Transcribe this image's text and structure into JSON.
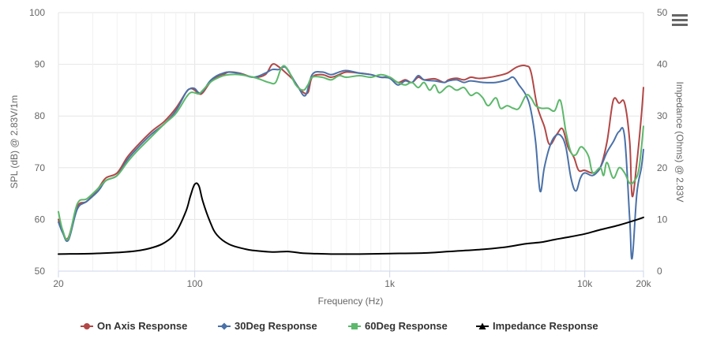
{
  "chart_data": {
    "type": "line",
    "x_scale": "log",
    "grid": true,
    "legend_placement": "bottom-center",
    "xlabel": "Frequency (Hz)",
    "ylabel_left": "SPL (dB) @ 2.83V/1m",
    "ylabel_right": "Impedance (Ohms) @ 2.83V",
    "xlim": [
      20,
      20000
    ],
    "ylim_left": [
      50,
      100
    ],
    "ylim_right": [
      0,
      50
    ],
    "x_ticks": [
      {
        "value": 20,
        "label": "20"
      },
      {
        "value": 100,
        "label": "100"
      },
      {
        "value": 1000,
        "label": "1k"
      },
      {
        "value": 10000,
        "label": "10k"
      },
      {
        "value": 20000,
        "label": "20k"
      }
    ],
    "y_ticks_left": [
      "50",
      "60",
      "70",
      "80",
      "90",
      "100"
    ],
    "y_ticks_right": [
      "0",
      "10",
      "20",
      "30",
      "40",
      "50"
    ],
    "series": [
      {
        "name": "On Axis Response",
        "color": "#b24746",
        "marker": "circle",
        "axis": "left",
        "points": [
          [
            20,
            60.0
          ],
          [
            21,
            57.5
          ],
          [
            22.5,
            56.5
          ],
          [
            25,
            62.5
          ],
          [
            28,
            63.5
          ],
          [
            32,
            66
          ],
          [
            35,
            68
          ],
          [
            40,
            69
          ],
          [
            45,
            72
          ],
          [
            50,
            74
          ],
          [
            60,
            77
          ],
          [
            70,
            79
          ],
          [
            80,
            81.5
          ],
          [
            90,
            84.5
          ],
          [
            95,
            85.3
          ],
          [
            100,
            85
          ],
          [
            105,
            84.3
          ],
          [
            110,
            84.5
          ],
          [
            120,
            86.5
          ],
          [
            130,
            87.5
          ],
          [
            140,
            88
          ],
          [
            150,
            88.5
          ],
          [
            170,
            88.3
          ],
          [
            200,
            87.5
          ],
          [
            230,
            88
          ],
          [
            250,
            90
          ],
          [
            270,
            89.5
          ],
          [
            290,
            88.5
          ],
          [
            320,
            87
          ],
          [
            350,
            85
          ],
          [
            380,
            84.5
          ],
          [
            400,
            87.5
          ],
          [
            450,
            88
          ],
          [
            500,
            87.5
          ],
          [
            550,
            88
          ],
          [
            600,
            88.5
          ],
          [
            700,
            88.3
          ],
          [
            800,
            88
          ],
          [
            900,
            87.5
          ],
          [
            1000,
            87.5
          ],
          [
            1100,
            86.5
          ],
          [
            1200,
            87
          ],
          [
            1300,
            86.5
          ],
          [
            1400,
            87.5
          ],
          [
            1500,
            87
          ],
          [
            1700,
            87.2
          ],
          [
            1900,
            86.5
          ],
          [
            2000,
            87
          ],
          [
            2200,
            87.3
          ],
          [
            2400,
            87
          ],
          [
            2600,
            87.5
          ],
          [
            2800,
            87.3
          ],
          [
            3000,
            87.3
          ],
          [
            3500,
            87.7
          ],
          [
            4000,
            88.3
          ],
          [
            4500,
            89.5
          ],
          [
            5000,
            89.7
          ],
          [
            5300,
            88.5
          ],
          [
            5700,
            82
          ],
          [
            6200,
            78
          ],
          [
            6600,
            74.5
          ],
          [
            7200,
            76.5
          ],
          [
            7700,
            77.5
          ],
          [
            8200,
            74
          ],
          [
            8800,
            72
          ],
          [
            9300,
            69.5
          ],
          [
            10000,
            69.5
          ],
          [
            11000,
            69
          ],
          [
            12000,
            70
          ],
          [
            13000,
            75
          ],
          [
            14000,
            83
          ],
          [
            15000,
            82.5
          ],
          [
            16000,
            82.5
          ],
          [
            17000,
            75
          ],
          [
            17500,
            64.5
          ],
          [
            18500,
            71
          ],
          [
            19500,
            80
          ],
          [
            20000,
            85.5
          ]
        ]
      },
      {
        "name": "30Deg Response",
        "color": "#4a71a8",
        "marker": "diamond",
        "axis": "left",
        "points": [
          [
            20,
            59.5
          ],
          [
            21,
            57.5
          ],
          [
            22.5,
            56
          ],
          [
            25,
            62
          ],
          [
            28,
            63.5
          ],
          [
            32,
            65.5
          ],
          [
            35,
            67.5
          ],
          [
            40,
            68.5
          ],
          [
            45,
            71.5
          ],
          [
            50,
            73.5
          ],
          [
            60,
            76.5
          ],
          [
            70,
            78.5
          ],
          [
            80,
            81
          ],
          [
            90,
            84.5
          ],
          [
            95,
            85.3
          ],
          [
            100,
            85.3
          ],
          [
            105,
            84.5
          ],
          [
            110,
            84.8
          ],
          [
            120,
            86.8
          ],
          [
            130,
            87.8
          ],
          [
            140,
            88.3
          ],
          [
            150,
            88.5
          ],
          [
            170,
            88.2
          ],
          [
            200,
            87.5
          ],
          [
            230,
            88.3
          ],
          [
            250,
            89
          ],
          [
            270,
            89
          ],
          [
            290,
            89.5
          ],
          [
            310,
            88
          ],
          [
            340,
            85.5
          ],
          [
            370,
            84
          ],
          [
            400,
            88
          ],
          [
            450,
            88.5
          ],
          [
            500,
            88
          ],
          [
            550,
            88.5
          ],
          [
            600,
            88.8
          ],
          [
            700,
            88.3
          ],
          [
            800,
            88
          ],
          [
            900,
            87.5
          ],
          [
            1000,
            87.3
          ],
          [
            1100,
            86
          ],
          [
            1200,
            86.8
          ],
          [
            1300,
            86.5
          ],
          [
            1400,
            87.8
          ],
          [
            1500,
            87
          ],
          [
            1700,
            86.8
          ],
          [
            1900,
            86.5
          ],
          [
            2000,
            86.8
          ],
          [
            2200,
            87
          ],
          [
            2400,
            86.5
          ],
          [
            2600,
            86.8
          ],
          [
            3000,
            86.5
          ],
          [
            3500,
            86.5
          ],
          [
            4000,
            87
          ],
          [
            4300,
            87.5
          ],
          [
            4600,
            86
          ],
          [
            5000,
            84
          ],
          [
            5300,
            81
          ],
          [
            5600,
            75
          ],
          [
            5900,
            65.5
          ],
          [
            6200,
            70
          ],
          [
            6600,
            74
          ],
          [
            7000,
            76
          ],
          [
            7500,
            76.3
          ],
          [
            8000,
            74
          ],
          [
            8500,
            68
          ],
          [
            9000,
            65.5
          ],
          [
            9500,
            68
          ],
          [
            10000,
            69
          ],
          [
            11000,
            68.5
          ],
          [
            12000,
            70
          ],
          [
            13000,
            73
          ],
          [
            14000,
            75
          ],
          [
            15000,
            77
          ],
          [
            16000,
            76
          ],
          [
            17000,
            60
          ],
          [
            17500,
            52.5
          ],
          [
            18500,
            65
          ],
          [
            19500,
            70
          ],
          [
            20000,
            73.5
          ]
        ]
      },
      {
        "name": "60Deg Response",
        "color": "#5cb86b",
        "marker": "square",
        "axis": "left",
        "points": [
          [
            20,
            61.5
          ],
          [
            21,
            58
          ],
          [
            22.5,
            56.3
          ],
          [
            25,
            63
          ],
          [
            28,
            64
          ],
          [
            32,
            66
          ],
          [
            35,
            67.5
          ],
          [
            40,
            68.5
          ],
          [
            45,
            71
          ],
          [
            50,
            73
          ],
          [
            60,
            76
          ],
          [
            70,
            78.5
          ],
          [
            80,
            80.5
          ],
          [
            90,
            83.5
          ],
          [
            95,
            84.5
          ],
          [
            100,
            84.5
          ],
          [
            105,
            84.3
          ],
          [
            110,
            85
          ],
          [
            120,
            86.5
          ],
          [
            130,
            87.3
          ],
          [
            140,
            87.8
          ],
          [
            150,
            88
          ],
          [
            170,
            88
          ],
          [
            200,
            87.5
          ],
          [
            220,
            87
          ],
          [
            240,
            86.5
          ],
          [
            260,
            86.5
          ],
          [
            280,
            89.5
          ],
          [
            300,
            89
          ],
          [
            330,
            86
          ],
          [
            360,
            85
          ],
          [
            380,
            86
          ],
          [
            400,
            87.5
          ],
          [
            450,
            87.5
          ],
          [
            500,
            87
          ],
          [
            550,
            87.8
          ],
          [
            600,
            87.5
          ],
          [
            700,
            87.8
          ],
          [
            800,
            87.5
          ],
          [
            900,
            88
          ],
          [
            1000,
            87.5
          ],
          [
            1100,
            86.5
          ],
          [
            1200,
            86
          ],
          [
            1300,
            86.5
          ],
          [
            1400,
            85.5
          ],
          [
            1500,
            86.5
          ],
          [
            1600,
            85
          ],
          [
            1700,
            86
          ],
          [
            1800,
            84.5
          ],
          [
            2000,
            85.8
          ],
          [
            2200,
            85
          ],
          [
            2400,
            85.5
          ],
          [
            2600,
            84
          ],
          [
            2800,
            84.5
          ],
          [
            3000,
            83.5
          ],
          [
            3200,
            82
          ],
          [
            3500,
            83.5
          ],
          [
            3700,
            81.5
          ],
          [
            4000,
            82
          ],
          [
            4300,
            81.5
          ],
          [
            4600,
            81.5
          ],
          [
            5000,
            84
          ],
          [
            5300,
            83.5
          ],
          [
            5600,
            82
          ],
          [
            6000,
            81.5
          ],
          [
            6500,
            81.5
          ],
          [
            7000,
            81
          ],
          [
            7500,
            83
          ],
          [
            8000,
            77
          ],
          [
            8500,
            73
          ],
          [
            9000,
            72.5
          ],
          [
            9500,
            74
          ],
          [
            10000,
            73.5
          ],
          [
            10500,
            72
          ],
          [
            11000,
            69
          ],
          [
            12000,
            70
          ],
          [
            12500,
            68.5
          ],
          [
            13000,
            71
          ],
          [
            14000,
            68
          ],
          [
            15000,
            70
          ],
          [
            16000,
            69
          ],
          [
            17000,
            67
          ],
          [
            18000,
            67.5
          ],
          [
            19000,
            70
          ],
          [
            20000,
            78
          ]
        ]
      },
      {
        "name": "Impedance Response",
        "color": "#000000",
        "marker": "triangle",
        "axis": "right",
        "points": [
          [
            20,
            3.3
          ],
          [
            30,
            3.4
          ],
          [
            40,
            3.6
          ],
          [
            50,
            3.9
          ],
          [
            60,
            4.5
          ],
          [
            70,
            5.5
          ],
          [
            80,
            7.5
          ],
          [
            90,
            11.5
          ],
          [
            95,
            14.5
          ],
          [
            100,
            16.8
          ],
          [
            105,
            16.5
          ],
          [
            110,
            13.5
          ],
          [
            120,
            9.5
          ],
          [
            130,
            7
          ],
          [
            150,
            5.2
          ],
          [
            180,
            4.3
          ],
          [
            200,
            4
          ],
          [
            250,
            3.7
          ],
          [
            300,
            3.8
          ],
          [
            350,
            3.5
          ],
          [
            400,
            3.4
          ],
          [
            500,
            3.3
          ],
          [
            700,
            3.3
          ],
          [
            1000,
            3.4
          ],
          [
            1500,
            3.5
          ],
          [
            2000,
            3.8
          ],
          [
            3000,
            4.2
          ],
          [
            4000,
            4.7
          ],
          [
            5000,
            5.3
          ],
          [
            6000,
            5.6
          ],
          [
            7000,
            6.1
          ],
          [
            8000,
            6.5
          ],
          [
            10000,
            7.2
          ],
          [
            12000,
            8
          ],
          [
            15000,
            8.9
          ],
          [
            18000,
            9.8
          ],
          [
            20000,
            10.4
          ]
        ]
      }
    ]
  }
}
